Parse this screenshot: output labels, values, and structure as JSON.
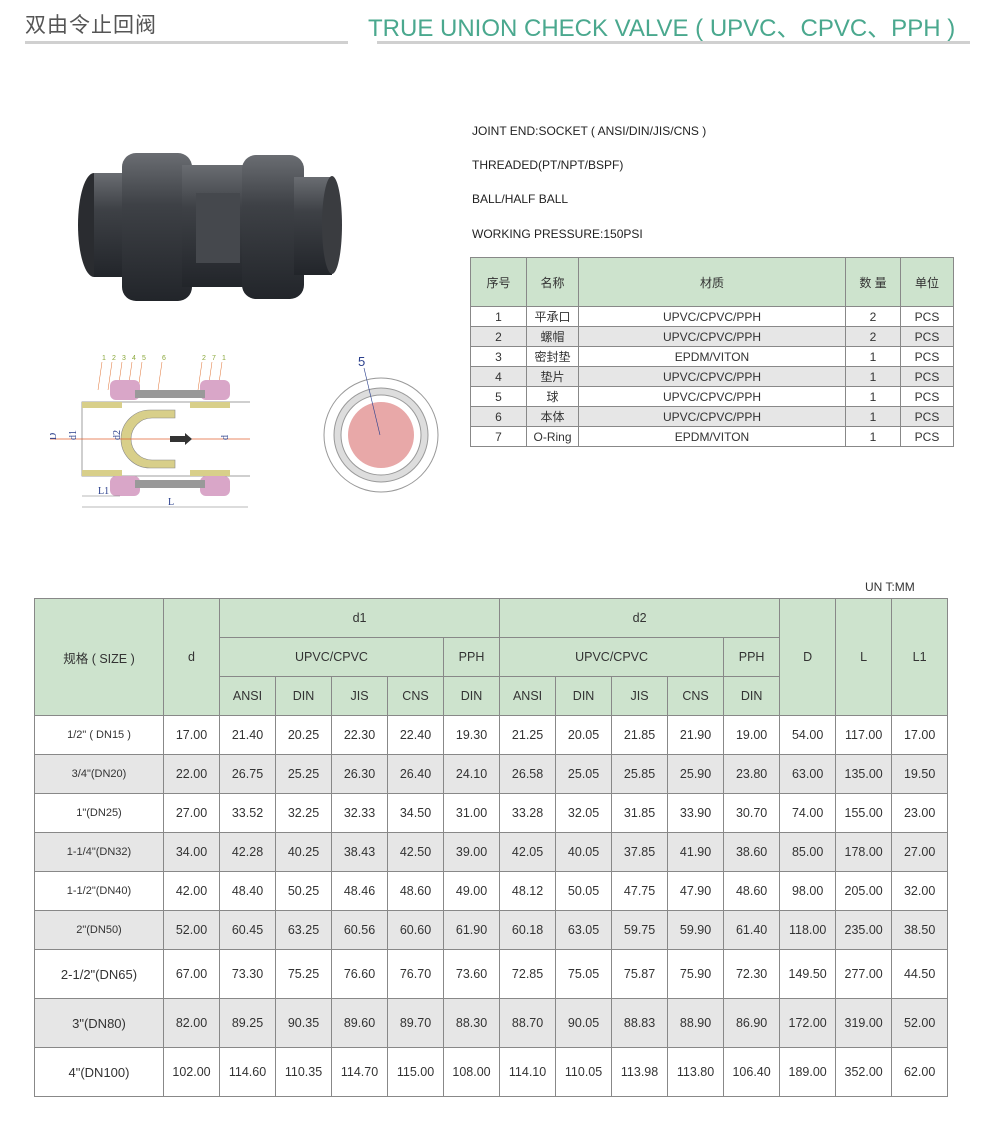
{
  "header": {
    "title_cn": "双由令止回阀",
    "title_en": "TRUE UNION CHECK VALVE ( UPVC、CPVC、PPH )",
    "accent_color": "#4aa88e",
    "header_fill": "#cde3cd"
  },
  "specs": [
    "JOINT END:SOCKET ( ANSI/DIN/JIS/CNS )",
    "THREADED(PT/NPT/BSPF)",
    "BALL/HALF BALL",
    "WORKING PRESSURE:150PSI"
  ],
  "drawing": {
    "part_callouts": [
      "1",
      "2",
      "3",
      "4",
      "5",
      "6",
      "2",
      "7",
      "1"
    ],
    "dimension_labels": [
      "D",
      "d1",
      "d2",
      "d",
      "L1",
      "L"
    ],
    "section_label": "5"
  },
  "parts_table": {
    "headers": [
      "序号",
      "名称",
      "材质",
      "数 量",
      "单位"
    ],
    "rows": [
      [
        "1",
        "平承口",
        "UPVC/CPVC/PPH",
        "2",
        "PCS"
      ],
      [
        "2",
        "螺帽",
        "UPVC/CPVC/PPH",
        "2",
        "PCS"
      ],
      [
        "3",
        "密封垫",
        "EPDM/VITON",
        "1",
        "PCS"
      ],
      [
        "4",
        "垫片",
        "UPVC/CPVC/PPH",
        "1",
        "PCS"
      ],
      [
        "5",
        "球",
        "UPVC/CPVC/PPH",
        "1",
        "PCS"
      ],
      [
        "6",
        "本体",
        "UPVC/CPVC/PPH",
        "1",
        "PCS"
      ],
      [
        "7",
        "O-Ring",
        "EPDM/VITON",
        "1",
        "PCS"
      ]
    ]
  },
  "dims_table": {
    "unit": "UN T:MM",
    "headers": {
      "size": "规格 ( SIZE )",
      "d": "d",
      "d1": "d1",
      "d2": "d2",
      "upvc_cpvc": "UPVC/CPVC",
      "pph": "PPH",
      "standards": [
        "ANSI",
        "DIN",
        "JIS",
        "CNS"
      ],
      "pph_std": "DIN",
      "D": "D",
      "L": "L",
      "L1": "L1"
    },
    "rows": [
      [
        "1/2\" ( DN15 )",
        "17.00",
        "21.40",
        "20.25",
        "22.30",
        "22.40",
        "19.30",
        "21.25",
        "20.05",
        "21.85",
        "21.90",
        "19.00",
        "54.00",
        "117.00",
        "17.00"
      ],
      [
        "3/4\"(DN20)",
        "22.00",
        "26.75",
        "25.25",
        "26.30",
        "26.40",
        "24.10",
        "26.58",
        "25.05",
        "25.85",
        "25.90",
        "23.80",
        "63.00",
        "135.00",
        "19.50"
      ],
      [
        "1\"(DN25)",
        "27.00",
        "33.52",
        "32.25",
        "32.33",
        "34.50",
        "31.00",
        "33.28",
        "32.05",
        "31.85",
        "33.90",
        "30.70",
        "74.00",
        "155.00",
        "23.00"
      ],
      [
        "1-1/4\"(DN32)",
        "34.00",
        "42.28",
        "40.25",
        "38.43",
        "42.50",
        "39.00",
        "42.05",
        "40.05",
        "37.85",
        "41.90",
        "38.60",
        "85.00",
        "178.00",
        "27.00"
      ],
      [
        "1-1/2\"(DN40)",
        "42.00",
        "48.40",
        "50.25",
        "48.46",
        "48.60",
        "49.00",
        "48.12",
        "50.05",
        "47.75",
        "47.90",
        "48.60",
        "98.00",
        "205.00",
        "32.00"
      ],
      [
        "2\"(DN50)",
        "52.00",
        "60.45",
        "63.25",
        "60.56",
        "60.60",
        "61.90",
        "60.18",
        "63.05",
        "59.75",
        "59.90",
        "61.40",
        "118.00",
        "235.00",
        "38.50"
      ],
      [
        "2-1/2\"(DN65)",
        "67.00",
        "73.30",
        "75.25",
        "76.60",
        "76.70",
        "73.60",
        "72.85",
        "75.05",
        "75.87",
        "75.90",
        "72.30",
        "149.50",
        "277.00",
        "44.50"
      ],
      [
        "3\"(DN80)",
        "82.00",
        "89.25",
        "90.35",
        "89.60",
        "89.70",
        "88.30",
        "88.70",
        "90.05",
        "88.83",
        "88.90",
        "86.90",
        "172.00",
        "319.00",
        "52.00"
      ],
      [
        "4\"(DN100)",
        "102.00",
        "114.60",
        "110.35",
        "114.70",
        "115.00",
        "108.00",
        "114.10",
        "110.05",
        "113.98",
        "113.80",
        "106.40",
        "189.00",
        "352.00",
        "62.00"
      ]
    ]
  }
}
